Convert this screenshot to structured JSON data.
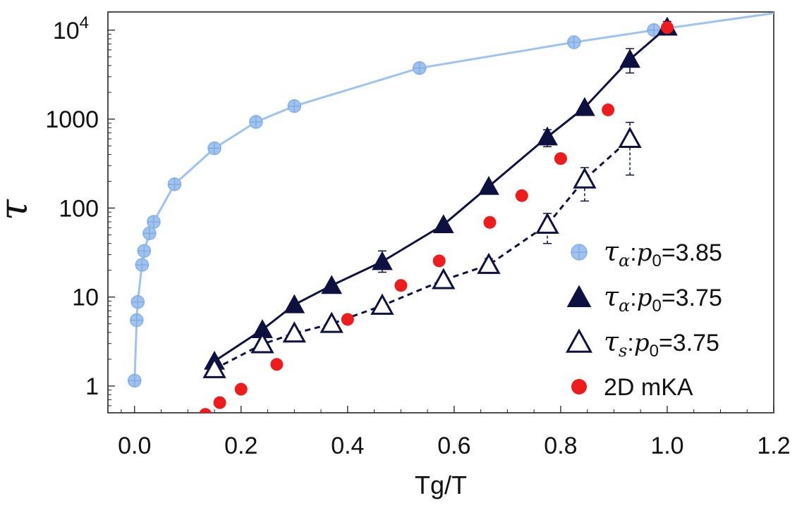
{
  "chart_data": {
    "type": "scatter",
    "xlabel": "Tg/T",
    "ylabel": "τ",
    "xlim": [
      -0.05,
      1.2
    ],
    "ylim": [
      0.5,
      16000
    ],
    "yscale": "log",
    "grid": false,
    "x_ticks": [
      0.0,
      0.2,
      0.4,
      0.6,
      0.8,
      1.0,
      1.2
    ],
    "x_tick_labels": [
      "0.0",
      "0.2",
      "0.4",
      "0.6",
      "0.8",
      "1.0",
      "1.2"
    ],
    "y_ticks": [
      1,
      10,
      100,
      1000,
      10000
    ],
    "y_tick_labels": [
      {
        "base": "1",
        "sup": ""
      },
      {
        "base": "10",
        "sup": ""
      },
      {
        "base": "100",
        "sup": ""
      },
      {
        "base": "1000",
        "sup": ""
      },
      {
        "base": "10",
        "sup": "4"
      }
    ],
    "legend_position": "bottom-right",
    "series": [
      {
        "name": "τα:p0=3.85",
        "legend": {
          "sym": "τ",
          "sub": "α",
          "p": "p",
          "psub": "0",
          "rest": "=3.85"
        },
        "color": "#9fc3ee",
        "marker": "circle-crosshair",
        "line": "solid",
        "x": [
          0.0,
          0.004,
          0.006,
          0.014,
          0.018,
          0.028,
          0.036,
          0.075,
          0.15,
          0.228,
          0.3,
          0.535,
          0.825,
          0.975,
          1.2
        ],
        "y": [
          1.15,
          5.5,
          8.8,
          23,
          33,
          52,
          70,
          185,
          470,
          930,
          1400,
          3750,
          7300,
          10000,
          15500
        ],
        "marker_mask": [
          1,
          1,
          1,
          1,
          1,
          1,
          1,
          1,
          1,
          1,
          1,
          1,
          1,
          1,
          0
        ]
      },
      {
        "name": "τα:p0=3.75",
        "legend": {
          "sym": "τ",
          "sub": "α",
          "p": "p",
          "psub": "0",
          "rest": "=3.75"
        },
        "color": "#0e1040",
        "marker": "triangle-filled",
        "line": "solid",
        "x": [
          0.15,
          0.24,
          0.3,
          0.37,
          0.465,
          0.58,
          0.665,
          0.775,
          0.845,
          0.93,
          1.0
        ],
        "y": [
          1.9,
          4.3,
          8.2,
          13.5,
          25,
          65,
          175,
          630,
          1350,
          4700,
          10800
        ],
        "err_low": [
          1.9,
          4.3,
          8.2,
          13.5,
          19,
          65,
          175,
          490,
          1350,
          3300,
          9200
        ],
        "err_high": [
          1.9,
          4.3,
          8.2,
          13.5,
          33,
          65,
          175,
          760,
          1350,
          6200,
          12500
        ]
      },
      {
        "name": "τs:p0=3.75",
        "legend": {
          "sym": "τ",
          "sub": "s",
          "p": "p",
          "psub": "0",
          "rest": "=3.75"
        },
        "color": "#0e1040",
        "marker": "triangle-open",
        "line": "dashed",
        "x": [
          0.15,
          0.24,
          0.3,
          0.37,
          0.465,
          0.58,
          0.665,
          0.775,
          0.845,
          0.93
        ],
        "y": [
          1.55,
          2.95,
          3.9,
          5.0,
          8.0,
          15.5,
          23,
          65,
          210,
          600
        ],
        "err_low": [
          1.55,
          2.95,
          3.9,
          5.0,
          8.0,
          15.5,
          18.5,
          40,
          120,
          235
        ],
        "err_high": [
          1.55,
          2.95,
          3.9,
          5.0,
          8.0,
          15.5,
          27,
          87,
          285,
          920
        ]
      },
      {
        "name": "2D mKA",
        "legend": {
          "sym": "",
          "sub": "",
          "p": "",
          "psub": "",
          "rest": "2D mKA"
        },
        "color": "#ee1c1c",
        "marker": "dot",
        "line": "none",
        "x": [
          0.133,
          0.16,
          0.2,
          0.267,
          0.4,
          0.5,
          0.572,
          0.667,
          0.727,
          0.8,
          0.889,
          1.0
        ],
        "y": [
          0.48,
          0.65,
          0.92,
          1.75,
          5.6,
          13.5,
          25.5,
          69,
          138,
          360,
          1270,
          10700
        ]
      }
    ]
  }
}
